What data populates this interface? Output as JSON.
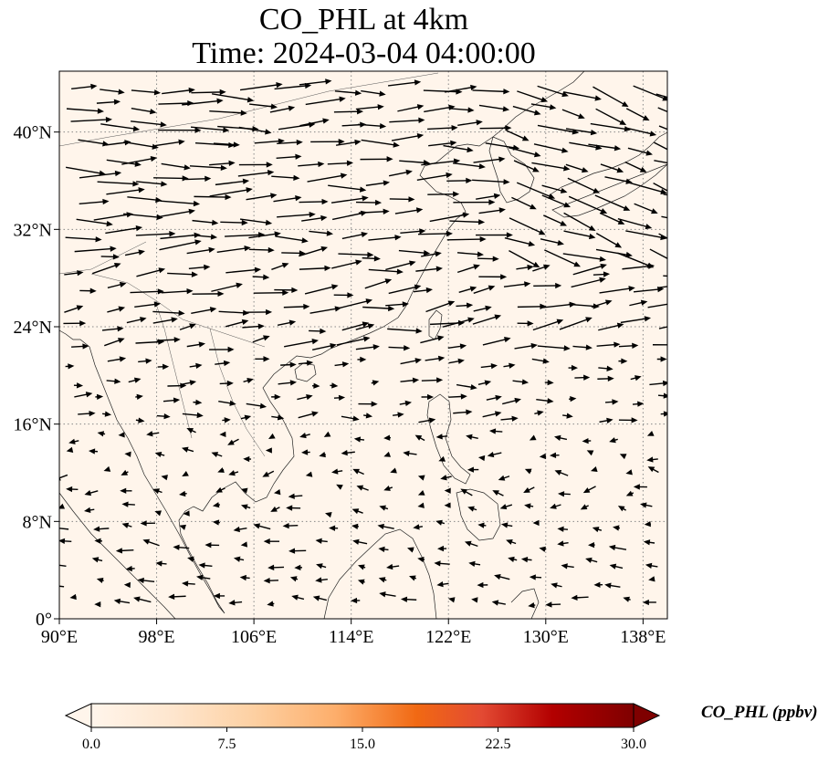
{
  "title_line1": "CO_PHL at 4km",
  "title_line2": "Time: 2024-03-04 04:00:00",
  "map": {
    "lon_range": [
      90,
      140
    ],
    "lat_range": [
      0,
      45
    ],
    "background_color": "#fff5eb",
    "x_ticks": [
      {
        "value": 90,
        "label": "90°E"
      },
      {
        "value": 98,
        "label": "98°E"
      },
      {
        "value": 106,
        "label": "106°E"
      },
      {
        "value": 114,
        "label": "114°E"
      },
      {
        "value": 122,
        "label": "122°E"
      },
      {
        "value": 130,
        "label": "130°E"
      },
      {
        "value": 138,
        "label": "138°E"
      }
    ],
    "y_ticks": [
      {
        "value": 0,
        "label": "0°"
      },
      {
        "value": 8,
        "label": "8°N"
      },
      {
        "value": 16,
        "label": "16°N"
      },
      {
        "value": 24,
        "label": "24°N"
      },
      {
        "value": 32,
        "label": "32°N"
      },
      {
        "value": 40,
        "label": "40°N"
      }
    ],
    "gridlines": "dotted",
    "wind_vectors": "black quiver arrows"
  },
  "colorbar": {
    "label": "CO_PHL (ppbv)",
    "colormap": "OrRd",
    "min": 0,
    "max": 30,
    "ticks": [
      {
        "value": 0,
        "label": "0.0"
      },
      {
        "value": 7.5,
        "label": "7.5"
      },
      {
        "value": 15,
        "label": "15.0"
      },
      {
        "value": 22.5,
        "label": "22.5"
      },
      {
        "value": 30,
        "label": "30.0"
      }
    ],
    "extend": "both"
  }
}
